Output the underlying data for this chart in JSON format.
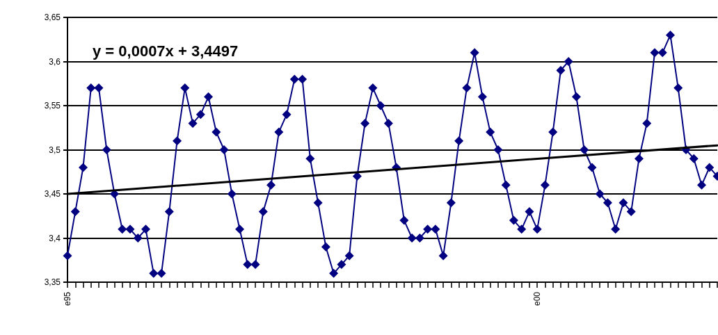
{
  "chart_data": {
    "type": "line",
    "categories": [
      "e95",
      null,
      null,
      null,
      null,
      null,
      null,
      null,
      null,
      null,
      null,
      null,
      null,
      null,
      null,
      null,
      null,
      null,
      null,
      null,
      null,
      null,
      null,
      null,
      null,
      null,
      null,
      null,
      null,
      null,
      null,
      null,
      null,
      null,
      null,
      null,
      null,
      null,
      null,
      null,
      null,
      null,
      null,
      null,
      null,
      null,
      null,
      null,
      null,
      null,
      null,
      null,
      null,
      null,
      null,
      null,
      null,
      null,
      null,
      null,
      "e00",
      null,
      null,
      null,
      null,
      null,
      null,
      null,
      null,
      null,
      null,
      null,
      null,
      null,
      null,
      null,
      null,
      null,
      null,
      null,
      null,
      null,
      null,
      null
    ],
    "series": [
      {
        "color": "#000080",
        "marker": "diamond",
        "values": [
          3.38,
          3.43,
          3.48,
          3.57,
          3.57,
          3.5,
          3.45,
          3.41,
          3.41,
          3.4,
          3.41,
          3.36,
          3.36,
          3.43,
          3.51,
          3.57,
          3.53,
          3.54,
          3.56,
          3.52,
          3.5,
          3.45,
          3.41,
          3.37,
          3.37,
          3.43,
          3.46,
          3.52,
          3.54,
          3.58,
          3.58,
          3.49,
          3.44,
          3.39,
          3.36,
          3.37,
          3.38,
          3.47,
          3.53,
          3.57,
          3.55,
          3.53,
          3.48,
          3.42,
          3.4,
          3.4,
          3.41,
          3.41,
          3.38,
          3.44,
          3.51,
          3.57,
          3.61,
          3.56,
          3.52,
          3.5,
          3.46,
          3.42,
          3.41,
          3.43,
          3.41,
          3.46,
          3.52,
          3.59,
          3.6,
          3.56,
          3.5,
          3.48,
          3.45,
          3.44,
          3.41,
          3.44,
          3.43,
          3.49,
          3.53,
          3.61,
          3.61,
          3.63,
          3.57,
          3.5,
          3.49,
          3.46,
          3.48,
          3.47
        ]
      },
      {
        "type": "line",
        "color": "#000000",
        "marker": "none",
        "values": [
          3.45,
          null,
          null,
          null,
          null,
          null,
          null,
          null,
          null,
          null,
          null,
          null,
          null,
          null,
          null,
          null,
          null,
          null,
          null,
          null,
          null,
          null,
          null,
          null,
          null,
          null,
          null,
          null,
          null,
          null,
          null,
          null,
          null,
          null,
          null,
          null,
          null,
          null,
          null,
          null,
          null,
          null,
          null,
          null,
          null,
          null,
          null,
          null,
          null,
          null,
          null,
          null,
          null,
          null,
          null,
          null,
          null,
          null,
          null,
          null,
          null,
          null,
          null,
          null,
          null,
          null,
          null,
          null,
          null,
          null,
          null,
          null,
          null,
          null,
          null,
          null,
          null,
          null,
          null,
          null,
          null,
          null,
          null,
          3.505
        ]
      }
    ],
    "ylim": [
      3.35,
      3.65
    ],
    "yticks": [
      {
        "value": 3.35,
        "label": "3,35"
      },
      {
        "value": 3.4,
        "label": "3,4"
      },
      {
        "value": 3.45,
        "label": "3,45"
      },
      {
        "value": 3.5,
        "label": "3,5"
      },
      {
        "value": 3.55,
        "label": "3,55"
      },
      {
        "value": 3.6,
        "label": "3,6"
      },
      {
        "value": 3.65,
        "label": "3,65"
      }
    ],
    "grid": "y",
    "annotations": [
      "y = 0,0007x + 3,4497"
    ]
  }
}
